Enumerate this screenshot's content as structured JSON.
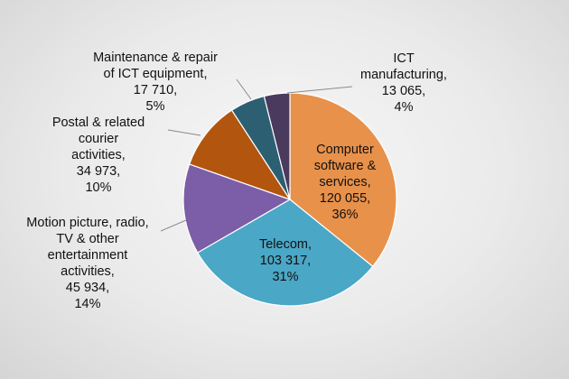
{
  "chart_data": {
    "type": "pie",
    "title": "",
    "slices": [
      {
        "name": "Computer software & services",
        "value": 120055,
        "percent": 36,
        "color": "#e8914a",
        "label_lines": [
          "Computer",
          "software &",
          "services,",
          "120 055,",
          "36%"
        ],
        "label_color": "#111111",
        "label_inside": true
      },
      {
        "name": "Telecom",
        "value": 103317,
        "percent": 31,
        "color": "#4aa7c6",
        "label_lines": [
          "Telecom,",
          "103 317,",
          "31%"
        ],
        "label_color": "#111111",
        "label_inside": true
      },
      {
        "name": "Motion picture, radio, TV & other entertainment activities",
        "value": 45934,
        "percent": 14,
        "color": "#7b5ea7",
        "label_lines": [
          "Motion picture, radio,",
          "TV & other",
          "entertainment",
          "activities,",
          "45 934,",
          "14%"
        ],
        "label_color": "#111111",
        "label_inside": false
      },
      {
        "name": "Postal & related courier activities",
        "value": 34973,
        "percent": 10,
        "color": "#b2550f",
        "label_lines": [
          "Postal & related",
          "courier",
          "activities,",
          "34 973,",
          "10%"
        ],
        "label_color": "#111111",
        "label_inside": false
      },
      {
        "name": "Maintenance & repair of ICT equipment",
        "value": 17710,
        "percent": 5,
        "color": "#2d5f73",
        "label_lines": [
          "Maintenance & repair",
          "of ICT equipment,",
          "17 710,",
          "5%"
        ],
        "label_color": "#111111",
        "label_inside": false
      },
      {
        "name": "ICT manufacturing",
        "value": 13065,
        "percent": 4,
        "color": "#4a3a5e",
        "label_lines": [
          "ICT",
          "manufacturing,",
          "13 065,",
          "4%"
        ],
        "label_color": "#111111",
        "label_inside": false
      }
    ],
    "start_angle_deg": 0,
    "direction": "clockwise",
    "legend": "none",
    "leader_line_color": "#8a8a8a"
  }
}
